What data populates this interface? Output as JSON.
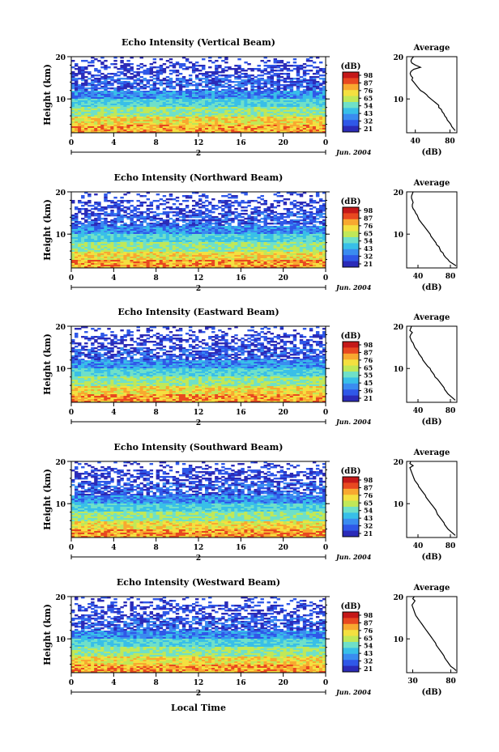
{
  "figure": {
    "x_axis_title": "Local Time",
    "date_label": "Jun. 2004",
    "day_marker": "2"
  },
  "colors": {
    "scale": [
      "#2b2bb8",
      "#2f58e8",
      "#3a8cf0",
      "#38bfe8",
      "#6fe0c8",
      "#c0e858",
      "#f4e040",
      "#f8a830",
      "#e84820",
      "#c41818"
    ],
    "profile_line": "#000000",
    "axis": "#000000"
  },
  "chart_data": [
    {
      "type": "heatmap",
      "title": "Echo Intensity (Vertical Beam)",
      "ylabel": "Height (km)",
      "x_ticks": [
        "0",
        "4",
        "8",
        "12",
        "16",
        "20",
        "0"
      ],
      "y_ticks": [
        "20",
        "10"
      ],
      "xlim": [
        0,
        24
      ],
      "ylim": [
        2,
        20
      ],
      "colorbar": {
        "label": "(dB)",
        "ticks": [
          "98",
          "87",
          "76",
          "65",
          "54",
          "43",
          "32",
          "21"
        ]
      },
      "profile": {
        "title": "Average",
        "xlabel": "(dB)",
        "x_ticks": [
          "40",
          "80"
        ],
        "xlim": [
          30,
          88
        ],
        "height": [
          20,
          19.5,
          19,
          18.5,
          18,
          17.5,
          17,
          16.5,
          16,
          15.5,
          15,
          14.5,
          14,
          13.5,
          13,
          12.5,
          12,
          11.5,
          11,
          10.5,
          10,
          9.5,
          9,
          8.5,
          8,
          7.5,
          7,
          6.5,
          6,
          5.5,
          5,
          4.5,
          4,
          3.5,
          3,
          2.5
        ],
        "value": [
          38,
          36,
          35,
          36,
          40,
          46,
          38,
          35,
          34,
          35,
          37,
          36,
          38,
          40,
          42,
          44,
          46,
          50,
          53,
          55,
          58,
          61,
          64,
          67,
          67,
          70,
          71,
          73,
          74,
          76,
          77,
          79,
          81,
          82,
          84,
          86
        ]
      }
    },
    {
      "type": "heatmap",
      "title": "Echo Intensity (Northward Beam)",
      "ylabel": "Height (km)",
      "x_ticks": [
        "0",
        "4",
        "8",
        "12",
        "16",
        "20",
        "0"
      ],
      "y_ticks": [
        "20",
        "10"
      ],
      "xlim": [
        0,
        24
      ],
      "ylim": [
        2,
        20
      ],
      "colorbar": {
        "label": "(dB)",
        "ticks": [
          "98",
          "87",
          "76",
          "65",
          "54",
          "43",
          "32",
          "21"
        ]
      },
      "profile": {
        "title": "Average",
        "xlabel": "(dB)",
        "x_ticks": [
          "40",
          "80"
        ],
        "xlim": [
          26,
          88
        ],
        "height": [
          20,
          19.5,
          19,
          18.5,
          18,
          17.5,
          17,
          16.5,
          16,
          15.5,
          15,
          14.5,
          14,
          13.5,
          13,
          12.5,
          12,
          11.5,
          11,
          10.5,
          10,
          9.5,
          9,
          8.5,
          8,
          7.5,
          7,
          6.5,
          6,
          5.5,
          5,
          4.5,
          4,
          3.5,
          3,
          2.5
        ],
        "value": [
          34,
          33,
          32,
          32,
          33,
          34,
          33,
          33,
          34,
          36,
          37,
          39,
          40,
          41,
          43,
          45,
          47,
          49,
          51,
          53,
          55,
          56,
          58,
          60,
          62,
          63,
          66,
          67,
          68,
          71,
          72,
          74,
          77,
          79,
          83,
          87
        ]
      }
    },
    {
      "type": "heatmap",
      "title": "Echo Intensity (Eastward Beam)",
      "ylabel": "Height (km)",
      "x_ticks": [
        "0",
        "4",
        "8",
        "12",
        "16",
        "20",
        "0"
      ],
      "y_ticks": [
        "20",
        "10"
      ],
      "xlim": [
        0,
        24
      ],
      "ylim": [
        2,
        20
      ],
      "colorbar": {
        "label": "(dB)",
        "ticks": [
          "98",
          "87",
          "76",
          "65",
          "55",
          "45",
          "36",
          "21"
        ]
      },
      "profile": {
        "title": "Average",
        "xlabel": "(dB)",
        "x_ticks": [
          "40",
          "80"
        ],
        "xlim": [
          26,
          88
        ],
        "height": [
          20,
          19.5,
          19,
          18.5,
          18,
          17.5,
          17,
          16.5,
          16,
          15.5,
          15,
          14.5,
          14,
          13.5,
          13,
          12.5,
          12,
          11.5,
          11,
          10.5,
          10,
          9.5,
          9,
          8.5,
          8,
          7.5,
          7,
          6.5,
          6,
          5.5,
          5,
          4.5,
          4,
          3.5,
          3,
          2.5
        ],
        "value": [
          32,
          31,
          30,
          33,
          31,
          30,
          31,
          32,
          34,
          35,
          36,
          38,
          40,
          41,
          43,
          45,
          46,
          48,
          50,
          52,
          55,
          56,
          58,
          60,
          61,
          64,
          66,
          68,
          70,
          72,
          73,
          75,
          77,
          80,
          83,
          86
        ]
      }
    },
    {
      "type": "heatmap",
      "title": "Echo Intensity (Southward Beam)",
      "ylabel": "Height (km)",
      "x_ticks": [
        "0",
        "4",
        "8",
        "12",
        "16",
        "20",
        "0"
      ],
      "y_ticks": [
        "20",
        "10"
      ],
      "xlim": [
        0,
        24
      ],
      "ylim": [
        2,
        20
      ],
      "colorbar": {
        "label": "(dB)",
        "ticks": [
          "98",
          "87",
          "76",
          "65",
          "54",
          "43",
          "32",
          "21"
        ]
      },
      "profile": {
        "title": "Average",
        "xlabel": "(dB)",
        "x_ticks": [
          "40",
          "80"
        ],
        "xlim": [
          26,
          88
        ],
        "height": [
          20,
          19.5,
          19,
          18.5,
          18,
          17.5,
          17,
          16.5,
          16,
          15.5,
          15,
          14.5,
          14,
          13.5,
          13,
          12.5,
          12,
          11.5,
          11,
          10.5,
          10,
          9.5,
          9,
          8.5,
          8,
          7.5,
          7,
          6.5,
          6,
          5.5,
          5,
          4.5,
          4,
          3.5,
          3,
          2.5
        ],
        "value": [
          31,
          30,
          34,
          30,
          31,
          32,
          33,
          34,
          35,
          36,
          38,
          40,
          41,
          43,
          45,
          47,
          49,
          50,
          52,
          54,
          56,
          58,
          60,
          62,
          63,
          64,
          66,
          68,
          70,
          72,
          73,
          75,
          77,
          80,
          83,
          86
        ]
      }
    },
    {
      "type": "heatmap",
      "title": "Echo Intensity (Westward Beam)",
      "ylabel": "Height (km)",
      "x_ticks": [
        "0",
        "4",
        "8",
        "12",
        "16",
        "20",
        "0"
      ],
      "y_ticks": [
        "20",
        "10"
      ],
      "xlim": [
        0,
        24
      ],
      "ylim": [
        2,
        20
      ],
      "colorbar": {
        "label": "(dB)",
        "ticks": [
          "98",
          "87",
          "76",
          "65",
          "54",
          "43",
          "32",
          "21"
        ]
      },
      "profile": {
        "title": "Average",
        "xlabel": "(dB)",
        "x_ticks": [
          "30",
          "80"
        ],
        "xlim": [
          22,
          88
        ],
        "height": [
          20,
          19.5,
          19,
          18.5,
          18,
          17.5,
          17,
          16.5,
          16,
          15.5,
          15,
          14.5,
          14,
          13.5,
          13,
          12.5,
          12,
          11.5,
          11,
          10.5,
          10,
          9.5,
          9,
          8.5,
          8,
          7.5,
          7,
          6.5,
          6,
          5.5,
          5,
          4.5,
          4,
          3.5,
          3,
          2.5
        ],
        "value": [
          32,
          30,
          33,
          31,
          29,
          30,
          31,
          32,
          33,
          34,
          36,
          38,
          40,
          42,
          44,
          46,
          48,
          50,
          52,
          54,
          56,
          58,
          60,
          61,
          63,
          65,
          67,
          69,
          71,
          72,
          74,
          76,
          78,
          80,
          84,
          87
        ]
      }
    }
  ]
}
